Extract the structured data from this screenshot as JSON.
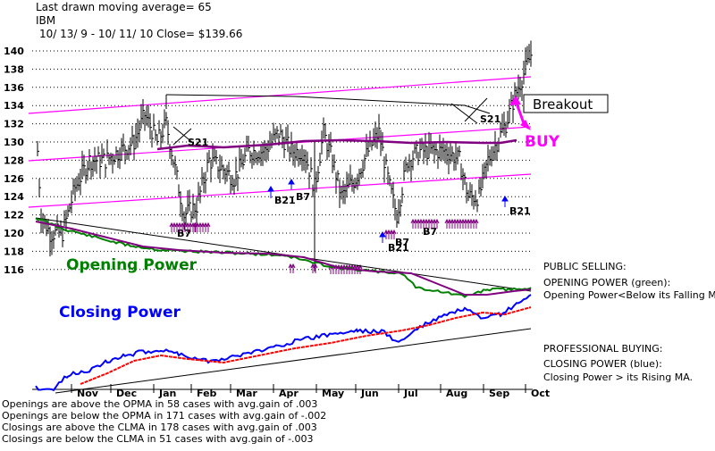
{
  "header": {
    "line1": "Last drawn moving average= 65",
    "line2": "IBM",
    "line3": "10/ 13/ 9 -  10/ 11/ 10    Close= $139.66"
  },
  "chart_data": {
    "type": "line",
    "ylim": [
      115,
      141
    ],
    "yticks": [
      140,
      138,
      136,
      134,
      132,
      130,
      128,
      126,
      124,
      122,
      120,
      118,
      116
    ],
    "months": [
      "Nov",
      "Dec",
      "Jan",
      "Feb",
      "Mar",
      "Apr",
      "May",
      "Jun",
      "Jul",
      "Aug",
      "Sep",
      "Oct"
    ],
    "annotations": {
      "breakout": "Breakout",
      "buy": "BUY",
      "sig_s21_a": "S21",
      "sig_s21_b": "S21",
      "sig_b21_a": "B21",
      "sig_b7_a": "B7",
      "sig_b21_b": "B21",
      "sig_b7_bottom1": "B7",
      "sig_b7_bottom2": "B7",
      "sig_b21_bottom": "B21",
      "sig_b7_bottom3": "B7"
    },
    "opening_power_label": "Opening Power",
    "closing_power_label": "Closing Power"
  },
  "notes": {
    "public_selling": "PUBLIC SELLING:",
    "opening_power_green": "OPENING POWER (green):",
    "opening_power_below": "Opening Power<Below its Falling MA.",
    "professional_buying": "PROFESSIONAL BUYING:",
    "closing_power_blue": "CLOSING POWER (blue):",
    "closing_power_above": "Closing Power > its Rising MA."
  },
  "stats": {
    "line1": "Openings are above the OPMA in   58 cases with avg.gain of  .003",
    "line2": "Openings are below the OPMA in  171 cases with avg.gain of -.002",
    "line3": "Closings are above the CLMA in  178 cases with avg.gain of  .003",
    "line4": "Closings are below the CLMA in   51 cases with avg.gain of -.003"
  },
  "colors": {
    "price": "#000000",
    "ma": "#800080",
    "channel": "#ff00ff",
    "opening_power": "#008000",
    "closing_power": "#0000ff",
    "cp_ma": "#ff0000",
    "signal_arrow": "#0000ff",
    "buy": "#ff00ff"
  }
}
